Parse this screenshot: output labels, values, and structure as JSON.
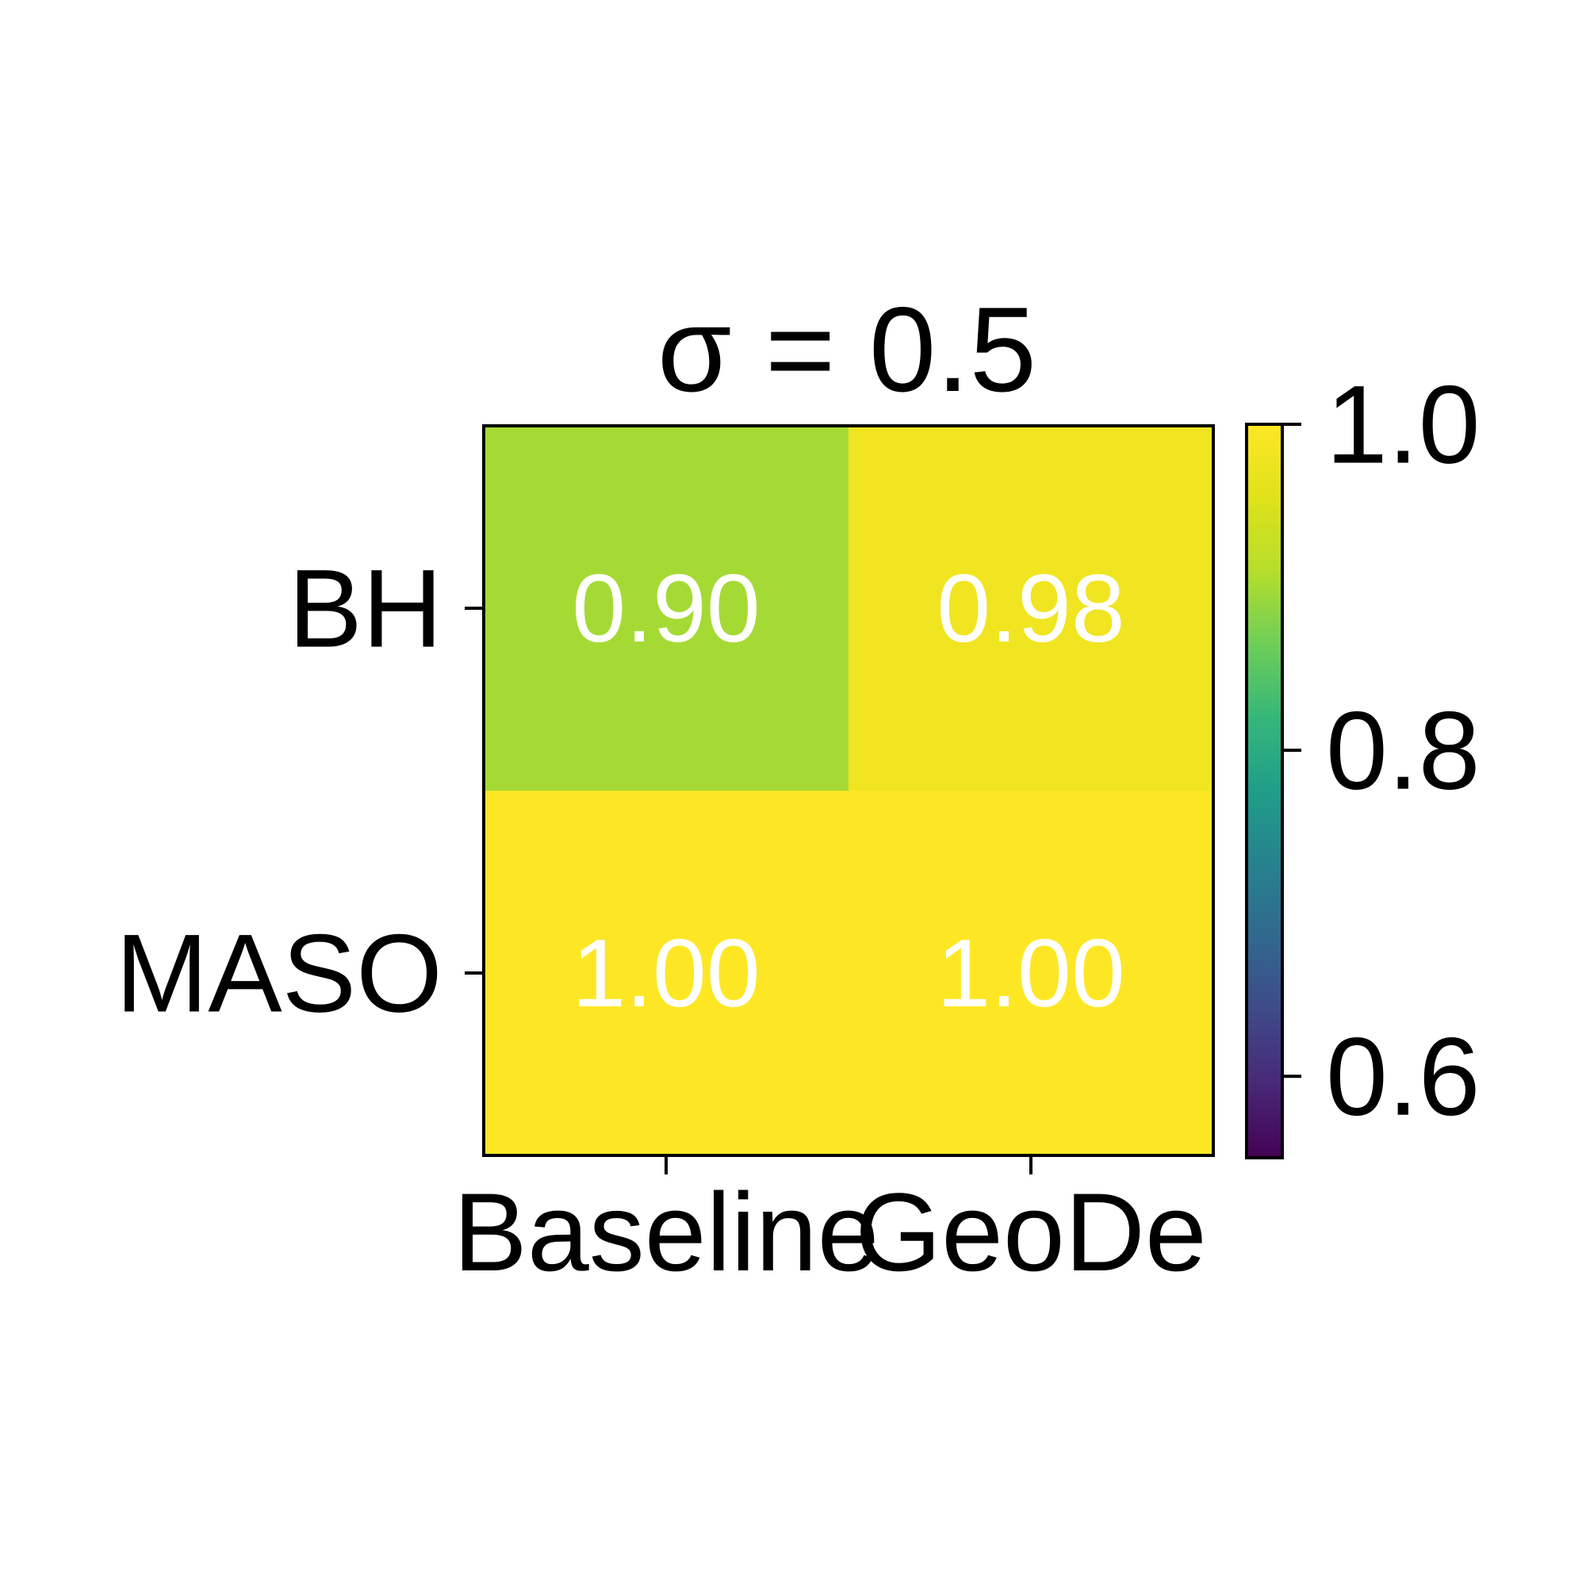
{
  "chart_data": {
    "type": "heatmap",
    "title": "σ = 0.5",
    "xlabel": "",
    "ylabel": "",
    "x_categories": [
      "Baseline",
      "GeoDe"
    ],
    "y_categories": [
      "BH",
      "MASO"
    ],
    "values": [
      [
        0.9,
        0.98
      ],
      [
        1.0,
        1.0
      ]
    ],
    "value_labels": [
      [
        "0.90",
        "0.98"
      ],
      [
        "1.00",
        "1.00"
      ]
    ],
    "colormap": "viridis",
    "colorbar": {
      "range": [
        0.55,
        1.0
      ],
      "ticks": [
        0.6,
        0.8,
        1.0
      ],
      "tick_labels": [
        "0.6",
        "0.8",
        "1.0"
      ]
    },
    "annotation_color": "#ffffff",
    "grid": false
  }
}
